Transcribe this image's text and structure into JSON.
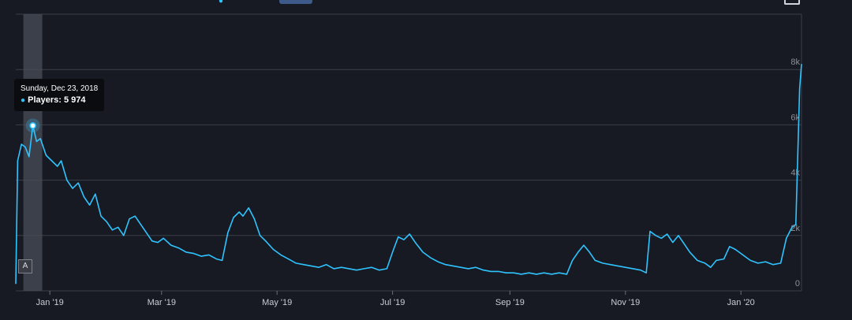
{
  "tooltip": {
    "date": "Sunday, Dec 23, 2018",
    "series_label": "Players",
    "value_text": "5 974"
  },
  "marker_flag": "A",
  "colors": {
    "line": "#2fc4ff",
    "background": "#171a23",
    "grid": "#3b3f4a",
    "highlight_band": "#4a4e58"
  },
  "chart_data": {
    "type": "line",
    "title": "",
    "xlabel": "",
    "ylabel": "",
    "x_ticks": [
      "Jan '19",
      "Mar '19",
      "May '19",
      "Jul '19",
      "Sep '19",
      "Nov '19",
      "Jan '20"
    ],
    "y_ticks": [
      "0",
      "2k",
      "4k",
      "6k",
      "8k"
    ],
    "ylim": [
      0,
      10000
    ],
    "grid": true,
    "highlight": {
      "start": "2018-12-18",
      "end": "2018-12-28",
      "point_date": "2018-12-23",
      "point_value": 5974
    },
    "series": [
      {
        "points": [
          [
            "2018-12-14",
            250
          ],
          [
            "2018-12-15",
            4700
          ],
          [
            "2018-12-17",
            5300
          ],
          [
            "2018-12-19",
            5200
          ],
          [
            "2018-12-21",
            4850
          ],
          [
            "2018-12-23",
            5974
          ],
          [
            "2018-12-25",
            5400
          ],
          [
            "2018-12-27",
            5500
          ],
          [
            "2018-12-30",
            4900
          ],
          [
            "2019-01-02",
            4700
          ],
          [
            "2019-01-05",
            4500
          ],
          [
            "2019-01-07",
            4700
          ],
          [
            "2019-01-10",
            4000
          ],
          [
            "2019-01-13",
            3700
          ],
          [
            "2019-01-16",
            3900
          ],
          [
            "2019-01-19",
            3400
          ],
          [
            "2019-01-22",
            3100
          ],
          [
            "2019-01-25",
            3500
          ],
          [
            "2019-01-28",
            2700
          ],
          [
            "2019-01-31",
            2500
          ],
          [
            "2019-02-03",
            2200
          ],
          [
            "2019-02-06",
            2300
          ],
          [
            "2019-02-09",
            2000
          ],
          [
            "2019-02-12",
            2600
          ],
          [
            "2019-02-15",
            2700
          ],
          [
            "2019-02-18",
            2400
          ],
          [
            "2019-02-21",
            2100
          ],
          [
            "2019-02-24",
            1800
          ],
          [
            "2019-02-27",
            1750
          ],
          [
            "2019-03-02",
            1900
          ],
          [
            "2019-03-06",
            1650
          ],
          [
            "2019-03-10",
            1550
          ],
          [
            "2019-03-14",
            1400
          ],
          [
            "2019-03-18",
            1350
          ],
          [
            "2019-03-22",
            1250
          ],
          [
            "2019-03-26",
            1300
          ],
          [
            "2019-03-30",
            1150
          ],
          [
            "2019-04-02",
            1100
          ],
          [
            "2019-04-05",
            2100
          ],
          [
            "2019-04-08",
            2650
          ],
          [
            "2019-04-11",
            2850
          ],
          [
            "2019-04-13",
            2700
          ],
          [
            "2019-04-16",
            3000
          ],
          [
            "2019-04-19",
            2600
          ],
          [
            "2019-04-22",
            2000
          ],
          [
            "2019-04-25",
            1800
          ],
          [
            "2019-04-29",
            1500
          ],
          [
            "2019-05-03",
            1300
          ],
          [
            "2019-05-07",
            1150
          ],
          [
            "2019-05-11",
            1000
          ],
          [
            "2019-05-15",
            950
          ],
          [
            "2019-05-19",
            900
          ],
          [
            "2019-05-23",
            850
          ],
          [
            "2019-05-27",
            950
          ],
          [
            "2019-05-31",
            800
          ],
          [
            "2019-06-04",
            850
          ],
          [
            "2019-06-08",
            800
          ],
          [
            "2019-06-12",
            750
          ],
          [
            "2019-06-16",
            800
          ],
          [
            "2019-06-20",
            850
          ],
          [
            "2019-06-24",
            750
          ],
          [
            "2019-06-28",
            800
          ],
          [
            "2019-07-01",
            1400
          ],
          [
            "2019-07-04",
            1950
          ],
          [
            "2019-07-07",
            1850
          ],
          [
            "2019-07-10",
            2050
          ],
          [
            "2019-07-13",
            1750
          ],
          [
            "2019-07-17",
            1400
          ],
          [
            "2019-07-21",
            1200
          ],
          [
            "2019-07-25",
            1050
          ],
          [
            "2019-07-29",
            950
          ],
          [
            "2019-08-02",
            900
          ],
          [
            "2019-08-06",
            850
          ],
          [
            "2019-08-10",
            800
          ],
          [
            "2019-08-14",
            850
          ],
          [
            "2019-08-18",
            750
          ],
          [
            "2019-08-22",
            700
          ],
          [
            "2019-08-26",
            700
          ],
          [
            "2019-08-30",
            650
          ],
          [
            "2019-09-03",
            650
          ],
          [
            "2019-09-07",
            600
          ],
          [
            "2019-09-11",
            650
          ],
          [
            "2019-09-15",
            600
          ],
          [
            "2019-09-19",
            650
          ],
          [
            "2019-09-23",
            600
          ],
          [
            "2019-09-27",
            650
          ],
          [
            "2019-10-01",
            600
          ],
          [
            "2019-10-04",
            1100
          ],
          [
            "2019-10-07",
            1400
          ],
          [
            "2019-10-10",
            1650
          ],
          [
            "2019-10-13",
            1400
          ],
          [
            "2019-10-16",
            1100
          ],
          [
            "2019-10-20",
            1000
          ],
          [
            "2019-10-24",
            950
          ],
          [
            "2019-10-28",
            900
          ],
          [
            "2019-11-01",
            850
          ],
          [
            "2019-11-05",
            800
          ],
          [
            "2019-11-09",
            750
          ],
          [
            "2019-11-12",
            650
          ],
          [
            "2019-11-14",
            2150
          ],
          [
            "2019-11-17",
            2000
          ],
          [
            "2019-11-20",
            1900
          ],
          [
            "2019-11-23",
            2050
          ],
          [
            "2019-11-26",
            1750
          ],
          [
            "2019-11-29",
            2000
          ],
          [
            "2019-12-02",
            1700
          ],
          [
            "2019-12-05",
            1400
          ],
          [
            "2019-12-09",
            1100
          ],
          [
            "2019-12-13",
            1000
          ],
          [
            "2019-12-16",
            850
          ],
          [
            "2019-12-19",
            1100
          ],
          [
            "2019-12-23",
            1150
          ],
          [
            "2019-12-26",
            1600
          ],
          [
            "2019-12-29",
            1500
          ],
          [
            "2020-01-02",
            1300
          ],
          [
            "2020-01-06",
            1100
          ],
          [
            "2020-01-10",
            1000
          ],
          [
            "2020-01-14",
            1050
          ],
          [
            "2020-01-18",
            950
          ],
          [
            "2020-01-22",
            1000
          ],
          [
            "2020-01-25",
            1900
          ],
          [
            "2020-01-28",
            2300
          ],
          [
            "2020-01-30",
            2400
          ],
          [
            "2020-02-01",
            7300
          ],
          [
            "2020-02-02",
            8200
          ]
        ]
      }
    ]
  }
}
